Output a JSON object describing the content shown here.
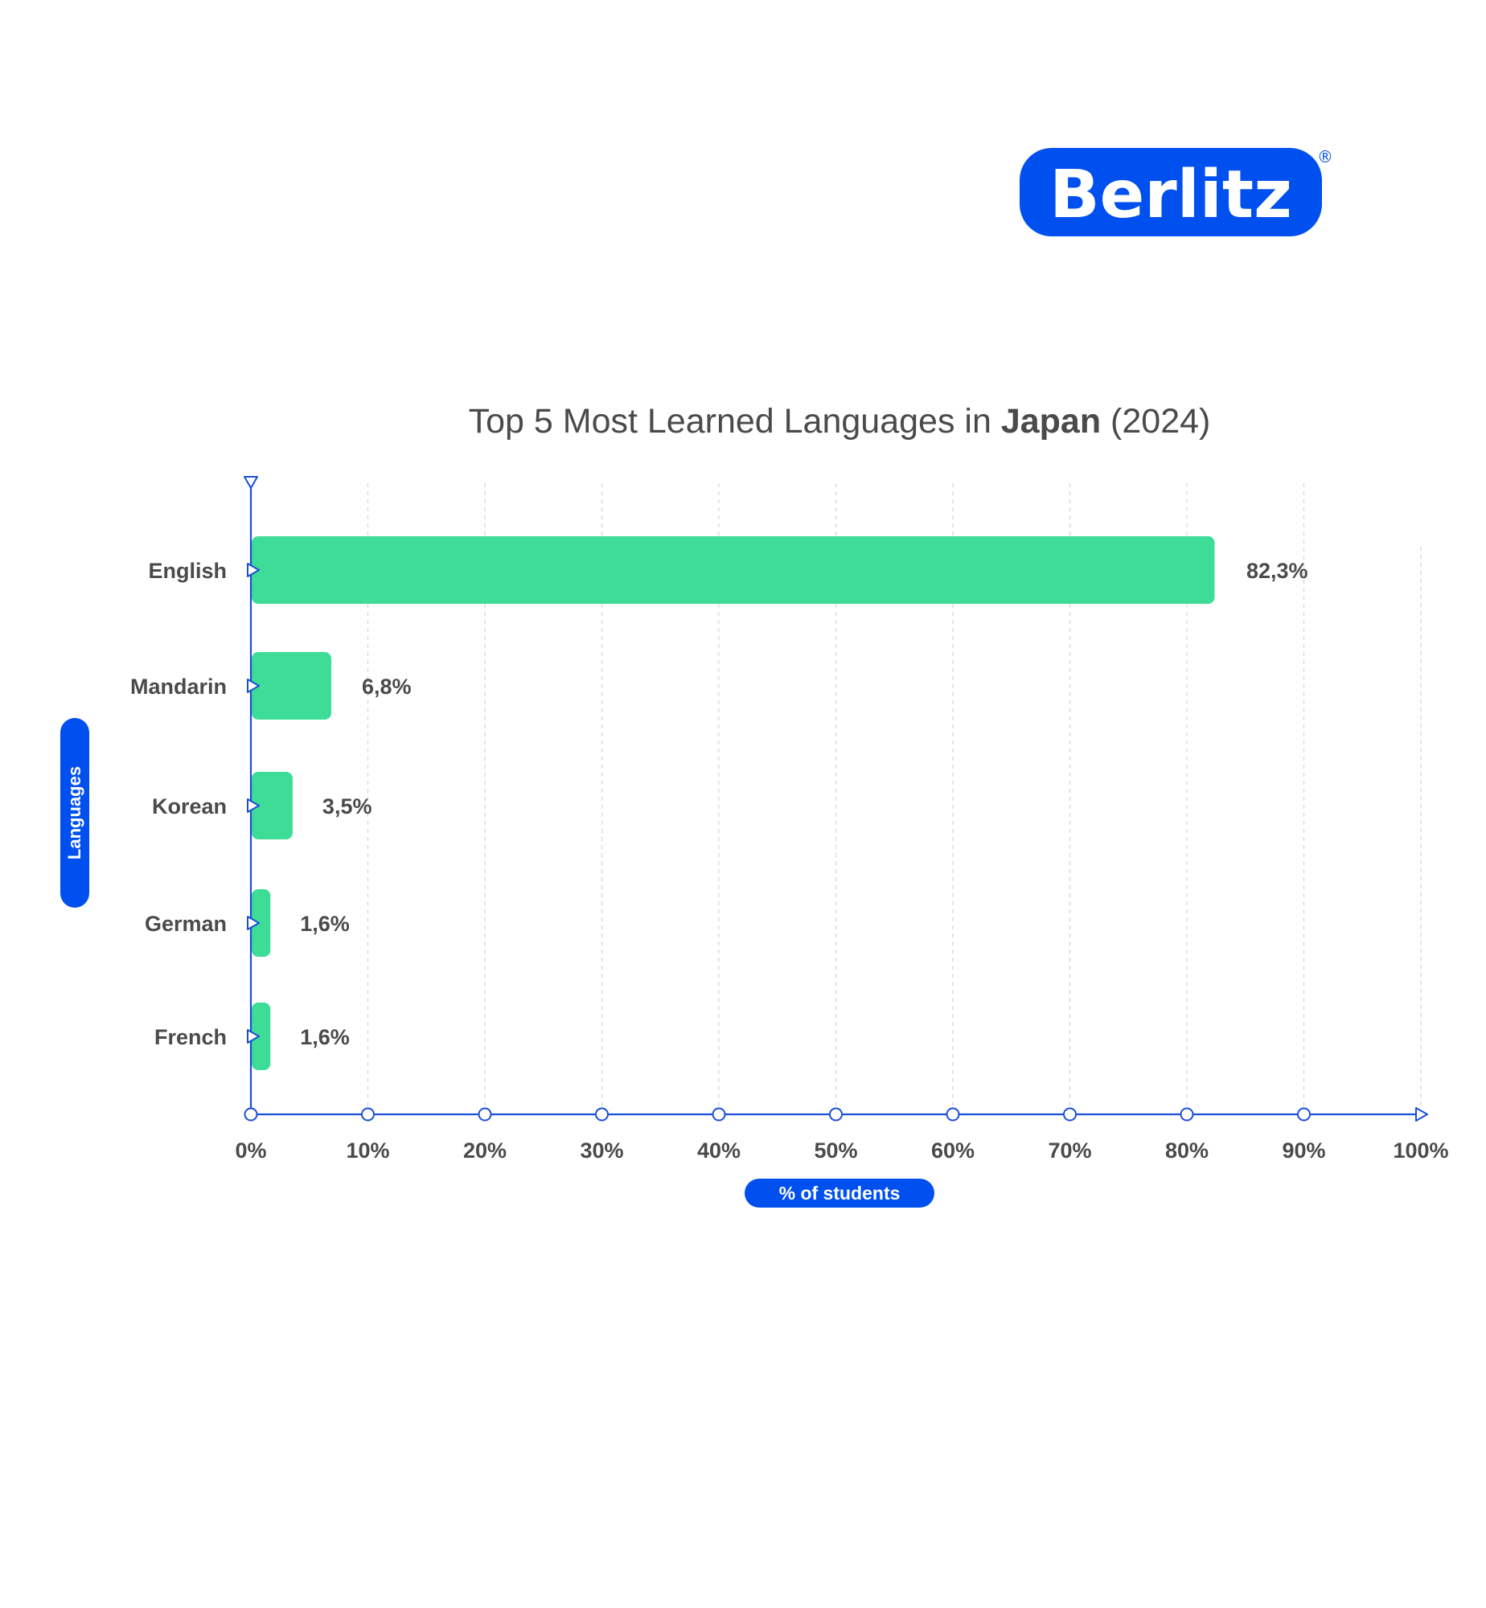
{
  "brand": {
    "name": "Berlitz",
    "registered_mark": "®",
    "color": "#0050f0"
  },
  "chart_data": {
    "type": "bar",
    "orientation": "horizontal",
    "title": {
      "prefix": "Top 5 Most Learned Languages in ",
      "country": "Japan",
      "suffix": " (2024)"
    },
    "categories": [
      "English",
      "Mandarin",
      "Korean",
      "German",
      "French"
    ],
    "values": [
      82.3,
      6.8,
      3.5,
      1.6,
      1.6
    ],
    "value_labels": [
      "82,3%",
      "6,8%",
      "3,5%",
      "1,6%",
      "1,6%"
    ],
    "xlim": [
      0,
      100
    ],
    "x_ticks": [
      "0%",
      "10%",
      "20%",
      "30%",
      "40%",
      "50%",
      "60%",
      "70%",
      "80%",
      "90%",
      "100%"
    ],
    "xlabel": "% of students",
    "ylabel": "Languages",
    "grid": "vertical dashed",
    "bar_color": "#3ddc97",
    "axis_color": "#1a4fd6"
  }
}
